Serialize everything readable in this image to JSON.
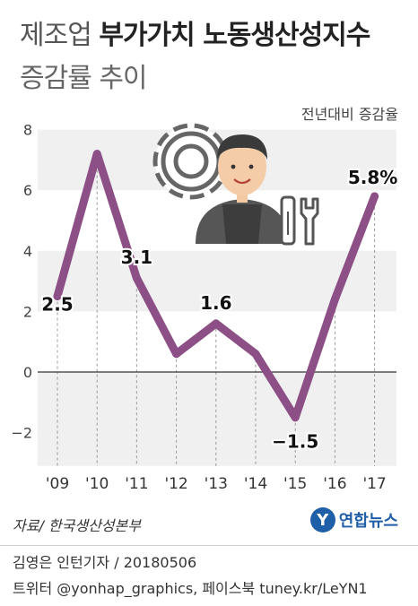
{
  "title": {
    "prefix": "제조업",
    "bold": "부가가치 노동생산성지수",
    "line2": "증감률 추이"
  },
  "unit_label": "전년대비 증감율",
  "colors": {
    "line": "#8c4f86",
    "band": "#f0f0f0",
    "zero_line": "#333333",
    "logo": "#1f5fa8"
  },
  "illustration": {
    "icons": [
      "gear-icon",
      "worker-icon",
      "tools-icon"
    ]
  },
  "chart_data": {
    "type": "line",
    "categories": [
      "'09",
      "'10",
      "'11",
      "'12",
      "'13",
      "'14",
      "'15",
      "'16",
      "'17"
    ],
    "values": [
      2.5,
      7.2,
      3.1,
      0.6,
      1.6,
      0.6,
      -1.5,
      2.4,
      5.8
    ],
    "data_labels": [
      {
        "index": 0,
        "text": "2.5"
      },
      {
        "index": 2,
        "text": "3.1"
      },
      {
        "index": 4,
        "text": "1.6"
      },
      {
        "index": 6,
        "text": "−1.5"
      },
      {
        "index": 8,
        "text": "5.8%"
      }
    ],
    "yticks": [
      "8",
      "6",
      "4",
      "2",
      "0",
      "−2"
    ],
    "ylim": [
      -3,
      8
    ],
    "grid": "alternating horizontal bands"
  },
  "footer": {
    "source": "자료/ 한국생산성본부",
    "logo_text": "연합뉴스",
    "logo_mark": "Y",
    "credit_line1": "김영은 인턴기자 / 20180506",
    "credit_line2": "트위터 @yonhap_graphics, 페이스북 tuney.kr/LeYN1"
  }
}
